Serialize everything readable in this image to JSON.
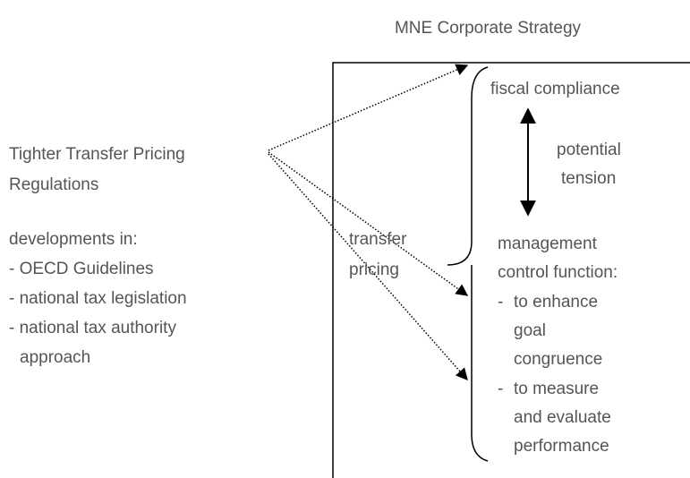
{
  "title": "MNE Corporate Strategy",
  "regulations": {
    "heading": [
      "Tighter Transfer Pricing",
      "Regulations"
    ],
    "developments": [
      "developments in:",
      "- OECD Guidelines",
      "- national tax legislation",
      "- national tax authority",
      "approach"
    ]
  },
  "center_label": [
    "transfer",
    "pricing"
  ],
  "fiscal": "fiscal compliance",
  "tension": [
    "potential",
    "tension"
  ],
  "management": [
    "management",
    "control function:",
    "-",
    "to enhance",
    "goal",
    "congruence",
    "-",
    "to measure",
    "and evaluate",
    "performance"
  ]
}
